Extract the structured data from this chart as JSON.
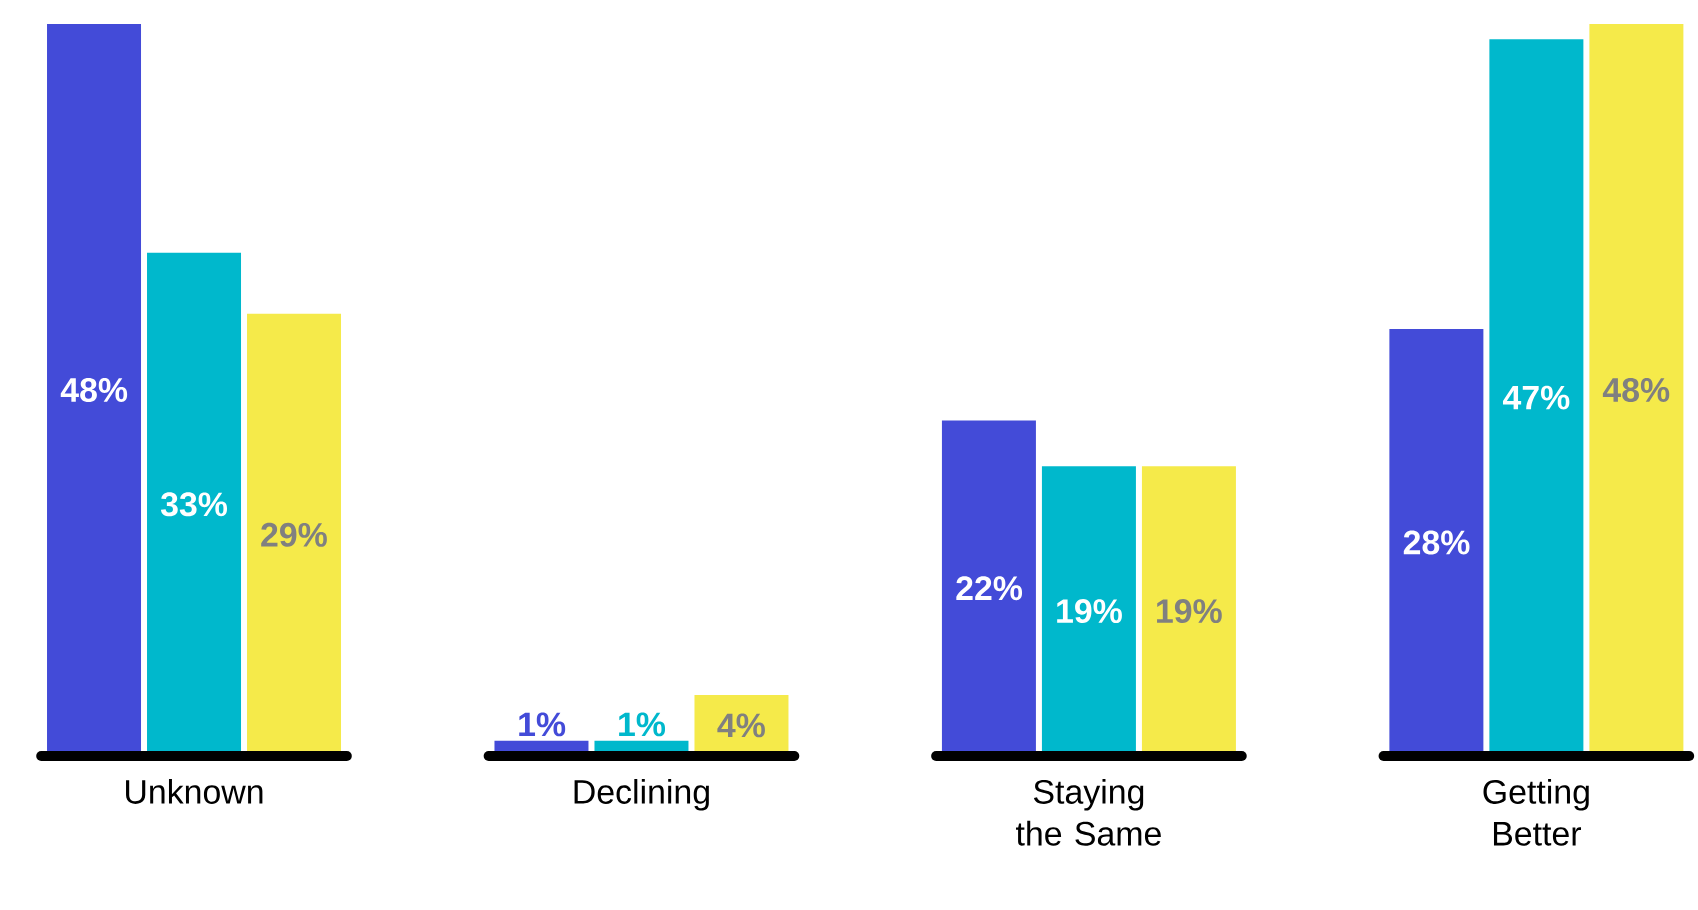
{
  "chart_data": {
    "type": "bar",
    "categories": [
      "Unknown",
      "Declining",
      "Staying the Same",
      "Getting Better"
    ],
    "ref_lines": [
      {
        "axis": "y",
        "value": 0,
        "color": "#000000"
      }
    ],
    "series": [
      {
        "color": "#434bd8",
        "values": [
          48,
          1,
          22,
          28
        ],
        "value_labels": [
          "48%",
          "1%",
          "22%",
          "28%"
        ]
      },
      {
        "color": "#00b8cc",
        "values": [
          33,
          1,
          19,
          47
        ],
        "value_labels": [
          "33%",
          "1%",
          "19%",
          "47%"
        ]
      },
      {
        "color": "#f5ea4a",
        "values": [
          29,
          4,
          19,
          48
        ],
        "value_labels": [
          "29%",
          "4%",
          "19%",
          "48%"
        ]
      }
    ]
  }
}
